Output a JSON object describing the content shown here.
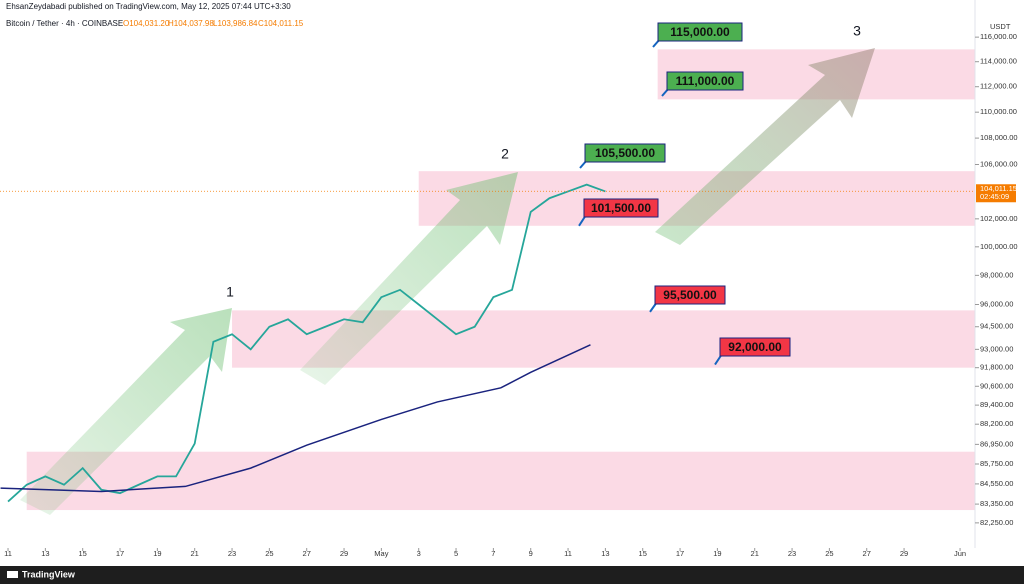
{
  "header": {
    "publisher": "EhsanZeydabadi published on TradingView.com, May 12, 2025 07:44 UTC+3:30",
    "symbol": "Bitcoin / Tether · 4h · COINBASE",
    "open": "O104,031.20",
    "high": "H104,037.98",
    "low": "L103,986.84",
    "close": "C104,011.15"
  },
  "footer": {
    "brand": "TradingView"
  },
  "chart_data": {
    "type": "line",
    "log_scale": true,
    "currency": "USDT",
    "x": [
      0,
      1,
      2,
      3,
      4,
      5,
      6,
      7,
      8,
      9,
      10,
      11,
      12,
      13,
      14,
      15,
      16,
      17,
      18,
      19,
      20,
      21,
      22,
      23,
      24,
      25,
      26,
      27,
      28,
      29,
      30,
      31,
      32
    ],
    "series": [
      {
        "name": "price",
        "color": "#26a69a",
        "values": [
          83500,
          84500,
          85000,
          84500,
          85500,
          84200,
          84000,
          84500,
          85000,
          85000,
          87000,
          93500,
          94000,
          93000,
          94500,
          95000,
          94000,
          94500,
          95000,
          94800,
          96500,
          97000,
          96000,
          95000,
          94000,
          94500,
          96500,
          97000,
          102500,
          103500,
          104000,
          104500,
          104000
        ]
      },
      {
        "name": "moving average",
        "color": "#1a237e",
        "x": [
          -0.4,
          5,
          9.5,
          13,
          16,
          20,
          23,
          26.4,
          28,
          31.2
        ],
        "values": [
          84300,
          84100,
          84400,
          85500,
          86900,
          88500,
          89600,
          90500,
          91500,
          93300
        ]
      }
    ],
    "zones": [
      {
        "from": 111000,
        "to": 115000,
        "x": 34.8
      },
      {
        "from": 101500,
        "to": 105500,
        "x": 22
      },
      {
        "from": 91800,
        "to": 95600,
        "x": 12
      },
      {
        "from": 83000,
        "to": 86500,
        "x": 1
      }
    ],
    "price_labels": [
      {
        "value": 115000,
        "label": "115,000.00",
        "color": "#4caf50"
      },
      {
        "value": 111000,
        "label": "111,000.00",
        "color": "#4caf50"
      },
      {
        "value": 105500,
        "label": "105,500.00",
        "color": "#4caf50"
      },
      {
        "value": 101500,
        "label": "101,500.00",
        "color": "#f23645"
      },
      {
        "value": 95500,
        "label": "95,500.00",
        "color": "#f23645"
      },
      {
        "value": 92000,
        "label": "92,000.00",
        "color": "#f23645"
      }
    ],
    "waves": [
      "1",
      "2",
      "3"
    ],
    "last_price": {
      "value": 104011.15,
      "label": "104,011.15",
      "timer": "02:45:09"
    },
    "xlim": [
      -0.43,
      51.8
    ],
    "ylim": [
      80800,
      117250
    ],
    "xticks": [
      {
        "value": 0,
        "label": "11"
      },
      {
        "value": 2,
        "label": "13"
      },
      {
        "value": 4,
        "label": "15"
      },
      {
        "value": 6,
        "label": "17"
      },
      {
        "value": 8,
        "label": "19"
      },
      {
        "value": 10,
        "label": "21"
      },
      {
        "value": 12,
        "label": "23"
      },
      {
        "value": 14,
        "label": "25"
      },
      {
        "value": 16,
        "label": "27"
      },
      {
        "value": 18,
        "label": "29"
      },
      {
        "value": 20,
        "label": "May"
      },
      {
        "value": 22,
        "label": "3"
      },
      {
        "value": 24,
        "label": "5"
      },
      {
        "value": 26,
        "label": "7"
      },
      {
        "value": 28,
        "label": "9"
      },
      {
        "value": 30,
        "label": "11"
      },
      {
        "value": 32,
        "label": "13"
      },
      {
        "value": 34,
        "label": "15"
      },
      {
        "value": 36,
        "label": "17"
      },
      {
        "value": 38,
        "label": "19"
      },
      {
        "value": 40,
        "label": "21"
      },
      {
        "value": 42,
        "label": "23"
      },
      {
        "value": 44,
        "label": "25"
      },
      {
        "value": 46,
        "label": "27"
      },
      {
        "value": 48,
        "label": "29"
      },
      {
        "value": 51,
        "label": "Jun"
      }
    ],
    "yticks": [
      {
        "value": 116000,
        "label": "116,000.00"
      },
      {
        "value": 114000,
        "label": "114,000.00"
      },
      {
        "value": 112000,
        "label": "112,000.00"
      },
      {
        "value": 110000,
        "label": "110,000.00"
      },
      {
        "value": 108000,
        "label": "108,000.00"
      },
      {
        "value": 106000,
        "label": "106,000.00"
      },
      {
        "value": 102000,
        "label": "102,000.00"
      },
      {
        "value": 100000,
        "label": "100,000.00"
      },
      {
        "value": 98000,
        "label": "98,000.00"
      },
      {
        "value": 96000,
        "label": "96,000.00"
      },
      {
        "value": 94500,
        "label": "94,500.00"
      },
      {
        "value": 93000,
        "label": "93,000.00"
      },
      {
        "value": 91800,
        "label": "91,800.00"
      },
      {
        "value": 90600,
        "label": "90,600.00"
      },
      {
        "value": 89400,
        "label": "89,400.00"
      },
      {
        "value": 88200,
        "label": "88,200.00"
      },
      {
        "value": 86950,
        "label": "86,950.00"
      },
      {
        "value": 85750,
        "label": "85,750.00"
      },
      {
        "value": 84550,
        "label": "84,550.00"
      },
      {
        "value": 83350,
        "label": "83,350.00"
      },
      {
        "value": 82250,
        "label": "82,250.00"
      }
    ]
  }
}
